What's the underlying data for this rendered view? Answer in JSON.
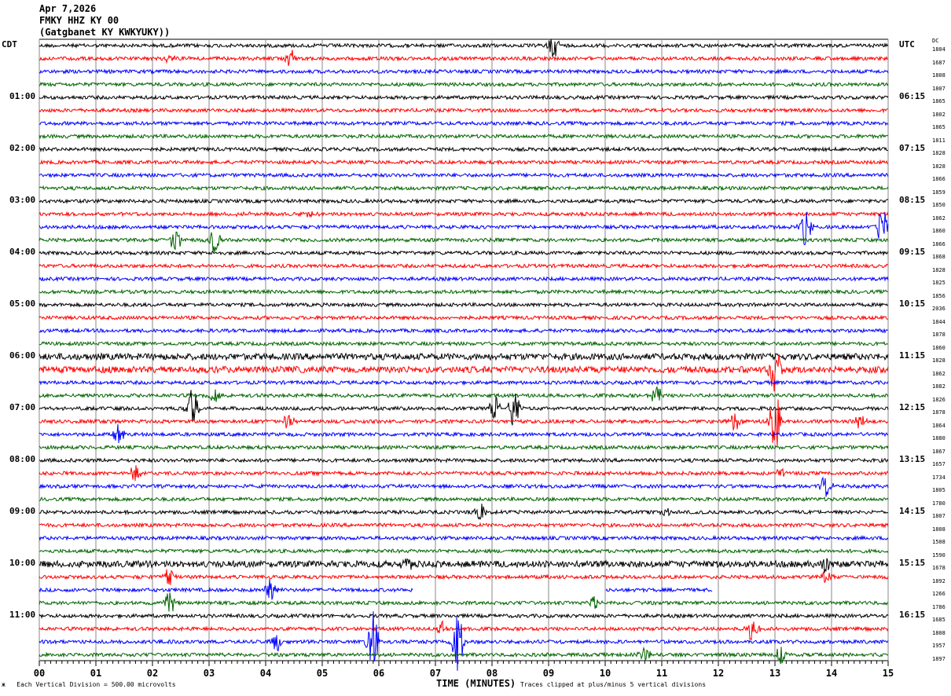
{
  "header": {
    "date": "Apr 7,2026",
    "station": "FMKY HHZ KY 00",
    "location": "(Gatgbanet KY KWKYUKY))"
  },
  "left_axis": {
    "title": "CDT",
    "labels": [
      "01:00",
      "02:00",
      "03:00",
      "04:00",
      "05:00",
      "06:00",
      "07:00",
      "08:00",
      "09:00",
      "10:00",
      "11:00"
    ]
  },
  "right_axis": {
    "title": "UTC",
    "labels": [
      "06:15",
      "07:15",
      "08:15",
      "09:15",
      "10:15",
      "11:15",
      "12:15",
      "13:15",
      "14:15",
      "15:15",
      "16:15"
    ],
    "dc_title": "DC"
  },
  "footer": {
    "scale": "Each Vertical Division =  500.00 microvolts",
    "xlabel": "TIME (MINUTES)",
    "clip": "Traces clipped at plus/minus 5 vertical divisions"
  },
  "chart_data": {
    "type": "line",
    "xlabel": "TIME (MINUTES)",
    "xlim": [
      0,
      15
    ],
    "x_ticks": [
      "00",
      "01",
      "02",
      "03",
      "04",
      "05",
      "06",
      "07",
      "08",
      "09",
      "10",
      "11",
      "12",
      "13",
      "14",
      "15"
    ],
    "grid": true,
    "trace_count": 48,
    "traces_per_hour": 4,
    "colors": [
      "#000000",
      "#ff0000",
      "#0000ff",
      "#006400"
    ],
    "dc_offsets": [
      "1804",
      "1687",
      "1808",
      "1807",
      "1865",
      "1802",
      "1865",
      "1811",
      "1828",
      "1828",
      "1866",
      "1859",
      "1850",
      "1862",
      "1860",
      "1866",
      "1868",
      "1828",
      "1825",
      "1856",
      "2036",
      "1844",
      "1878",
      "1860",
      "1828",
      "1862",
      "1882",
      "1826",
      "1878",
      "1864",
      "1880",
      "1867",
      "1657",
      "1734",
      "1805",
      "1780",
      "1807",
      "1808",
      "1508",
      "1590",
      "1678",
      "1892",
      "1266",
      "1786",
      "1685",
      "1808",
      "1957",
      "1897"
    ],
    "noisy_traces": [
      24,
      25,
      40
    ],
    "gaps": [
      {
        "trace": 42,
        "from": 6.6,
        "to": 10.0
      },
      {
        "trace": 42,
        "from": 11.9,
        "to": 15.0
      }
    ],
    "events": [
      {
        "trace": 0,
        "minute": 9.1,
        "amp": 2.2
      },
      {
        "trace": 1,
        "minute": 4.45,
        "amp": 1.6
      },
      {
        "trace": 1,
        "minute": 2.3,
        "amp": 0.8
      },
      {
        "trace": 13,
        "minute": 3.6,
        "amp": 0.6
      },
      {
        "trace": 13,
        "minute": 4.8,
        "amp": 0.5
      },
      {
        "trace": 14,
        "minute": 13.55,
        "amp": 3.0
      },
      {
        "trace": 14,
        "minute": 14.9,
        "amp": 3.2
      },
      {
        "trace": 15,
        "minute": 2.4,
        "amp": 2.2
      },
      {
        "trace": 15,
        "minute": 3.1,
        "amp": 2.0
      },
      {
        "trace": 25,
        "minute": 13.0,
        "amp": 5.0
      },
      {
        "trace": 27,
        "minute": 3.1,
        "amp": 1.6
      },
      {
        "trace": 27,
        "minute": 10.9,
        "amp": 1.5
      },
      {
        "trace": 28,
        "minute": 2.7,
        "amp": 3.5
      },
      {
        "trace": 28,
        "minute": 8.05,
        "amp": 2.0
      },
      {
        "trace": 28,
        "minute": 8.4,
        "amp": 3.5
      },
      {
        "trace": 29,
        "minute": 4.4,
        "amp": 1.5
      },
      {
        "trace": 29,
        "minute": 12.3,
        "amp": 1.8
      },
      {
        "trace": 29,
        "minute": 13.0,
        "amp": 5.0
      },
      {
        "trace": 29,
        "minute": 14.5,
        "amp": 1.0
      },
      {
        "trace": 30,
        "minute": 1.4,
        "amp": 1.5
      },
      {
        "trace": 33,
        "minute": 1.7,
        "amp": 1.5
      },
      {
        "trace": 33,
        "minute": 13.1,
        "amp": 0.8
      },
      {
        "trace": 34,
        "minute": 13.9,
        "amp": 1.8
      },
      {
        "trace": 36,
        "minute": 7.8,
        "amp": 1.4
      },
      {
        "trace": 36,
        "minute": 11.1,
        "amp": 0.8
      },
      {
        "trace": 40,
        "minute": 6.5,
        "amp": 1.4
      },
      {
        "trace": 40,
        "minute": 13.9,
        "amp": 1.2
      },
      {
        "trace": 41,
        "minute": 2.3,
        "amp": 1.5
      },
      {
        "trace": 41,
        "minute": 13.9,
        "amp": 1.2
      },
      {
        "trace": 42,
        "minute": 4.1,
        "amp": 2.0
      },
      {
        "trace": 43,
        "minute": 2.3,
        "amp": 2.0
      },
      {
        "trace": 43,
        "minute": 9.8,
        "amp": 1.4
      },
      {
        "trace": 45,
        "minute": 7.1,
        "amp": 1.2
      },
      {
        "trace": 45,
        "minute": 12.6,
        "amp": 2.2
      },
      {
        "trace": 46,
        "minute": 4.2,
        "amp": 1.5
      },
      {
        "trace": 46,
        "minute": 5.9,
        "amp": 5.0
      },
      {
        "trace": 46,
        "minute": 7.4,
        "amp": 5.0
      },
      {
        "trace": 47,
        "minute": 10.7,
        "amp": 1.2
      },
      {
        "trace": 47,
        "minute": 13.1,
        "amp": 1.8
      }
    ]
  }
}
